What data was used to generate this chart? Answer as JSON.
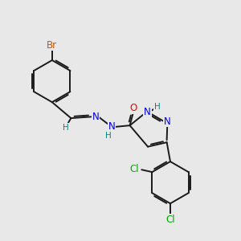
{
  "background_color": "#e8e8e8",
  "bond_color": "#1a1a1a",
  "bond_width": 1.4,
  "dbo": 0.055,
  "atoms": {
    "Br": {
      "color": "#cc5500"
    },
    "O": {
      "color": "#ff0000"
    },
    "N": {
      "color": "#0000dd"
    },
    "H": {
      "color": "#008888"
    },
    "Cl": {
      "color": "#00aa00"
    }
  },
  "fontsize": 8.5
}
